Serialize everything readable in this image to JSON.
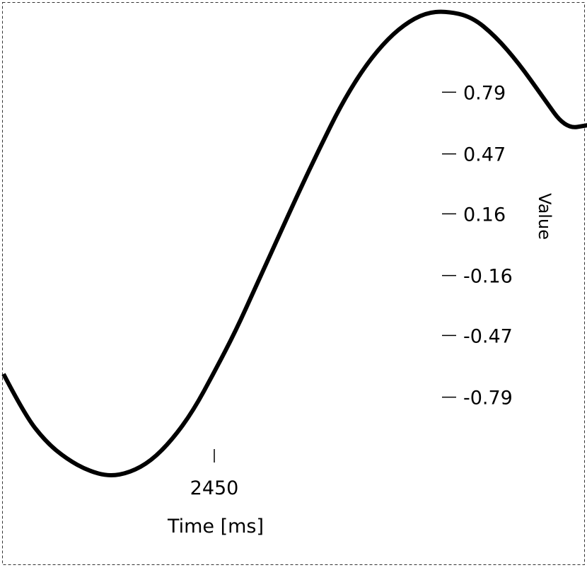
{
  "chart_data": {
    "type": "line",
    "title": "",
    "xlabel": "Time [ms]",
    "ylabel": "Value",
    "x_ticks": [
      2450
    ],
    "x_tick_labels": [
      "2450"
    ],
    "y_ticks": [
      0.79,
      0.47,
      0.16,
      -0.16,
      -0.47,
      -0.79
    ],
    "y_tick_labels": [
      "0.79",
      "0.47",
      "0.16",
      "-0.16",
      "-0.47",
      "-0.79"
    ],
    "y_axis_side": "right",
    "grid": false,
    "legend": "none",
    "series": [
      {
        "color": "#000000",
        "x": [
          2000,
          2045,
          2090,
          2135,
          2180,
          2225,
          2270,
          2315,
          2360,
          2405,
          2450,
          2495,
          2540,
          2585,
          2630,
          2675,
          2720,
          2765,
          2810,
          2855,
          2900,
          2945,
          3000,
          3050,
          3100,
          3150,
          3200,
          3250,
          3250
        ],
        "y": [
          -0.67,
          -0.88,
          -1.02,
          -1.11,
          -1.17,
          -1.2,
          -1.18,
          -1.12,
          -1.01,
          -0.86,
          -0.66,
          -0.45,
          -0.21,
          0.03,
          0.27,
          0.5,
          0.72,
          0.9,
          1.04,
          1.14,
          1.2,
          1.21,
          1.18,
          1.08,
          0.94,
          0.77,
          0.6,
          0.62,
          0.62
        ]
      }
    ]
  }
}
